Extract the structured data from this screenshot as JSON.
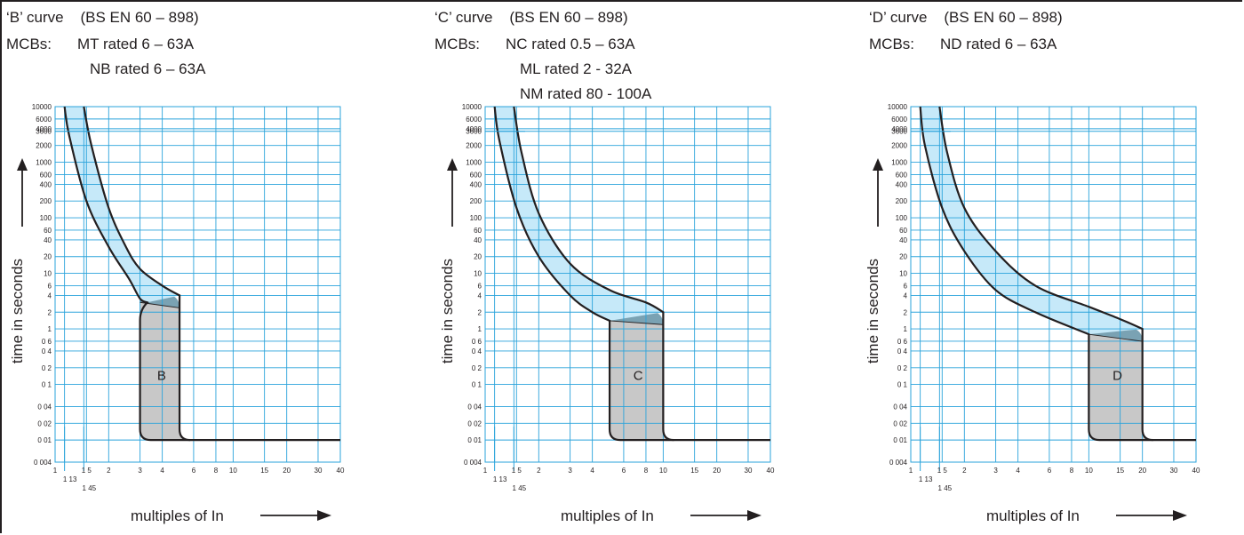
{
  "panels": [
    {
      "title": "‘B’ curve    (BS EN 60 – 898)",
      "mcbs_label": "MCBs:",
      "mcb_lines": [
        "MT rated 6 – 63A",
        "NB rated 6 – 63A"
      ],
      "region_label": "B"
    },
    {
      "title": "‘C’ curve    (BS EN 60 – 898)",
      "mcbs_label": "MCBs:",
      "mcb_lines": [
        "NC rated 0.5 – 63A",
        "ML rated 2 - 32A",
        "NM rated 80 - 100A"
      ],
      "region_label": "C"
    },
    {
      "title": "‘D’ curve    (BS EN 60 – 898)",
      "mcbs_label": "MCBs:",
      "mcb_lines": [
        "ND rated 6 – 63A"
      ],
      "region_label": "D"
    }
  ],
  "colors": {
    "band": "#c6e9f9",
    "overlap": "#7aa2b3",
    "shaded": "#c8c8c8",
    "grid": "#2aa3db",
    "line": "#231f20"
  },
  "chart_data": [
    {
      "type": "line",
      "title": "‘B’ curve    (BS EN 60 – 898)",
      "xlabel": "multiples of  In",
      "ylabel": "time in seconds",
      "x_scale": "log",
      "y_scale": "log",
      "xlim": [
        1,
        40
      ],
      "ylim": [
        0.004,
        10000
      ],
      "x_ticks": [
        "1",
        "1 13",
        "1 45",
        "1 5",
        "2",
        "3",
        "4",
        "6",
        "8",
        "10",
        "15",
        "20",
        "30",
        "40"
      ],
      "y_ticks": [
        "10000",
        "6000",
        "4000",
        "3600",
        "2000",
        "1000",
        "600",
        "400",
        "200",
        "100",
        "60",
        "40",
        "20",
        "10",
        "6",
        "4",
        "2",
        "1",
        "0 6",
        "0 4",
        "0 2",
        "0 1",
        "0 04",
        "0 02",
        "0 01",
        "0 004"
      ],
      "magnetic_region": {
        "label": "B",
        "x_min": 3,
        "x_max": 5
      },
      "series": [
        {
          "x": [
            1.13,
            1.2,
            1.5,
            2,
            2.6,
            3,
            3.3
          ],
          "y": [
            10000,
            3000,
            200,
            30,
            8,
            3.5,
            3
          ]
        },
        {
          "x": [
            1.45,
            1.6,
            2,
            2.5,
            3,
            4,
            5
          ],
          "y": [
            10000,
            2000,
            150,
            30,
            12,
            6,
            4
          ]
        }
      ]
    },
    {
      "type": "line",
      "title": "‘C’ curve    (BS EN 60 – 898)",
      "xlabel": "multiples of  In",
      "ylabel": "time in seconds",
      "x_scale": "log",
      "y_scale": "log",
      "xlim": [
        1,
        40
      ],
      "ylim": [
        0.004,
        10000
      ],
      "x_ticks": [
        "1",
        "1 13",
        "1 45",
        "1 5",
        "2",
        "3",
        "4",
        "6",
        "8",
        "10",
        "15",
        "20",
        "30",
        "40"
      ],
      "y_ticks": [
        "10000",
        "6000",
        "4000",
        "3600",
        "2000",
        "1000",
        "600",
        "400",
        "200",
        "100",
        "60",
        "40",
        "20",
        "10",
        "6",
        "4",
        "2",
        "1",
        "0 6",
        "0 4",
        "0 2",
        "0 1",
        "0 04",
        "0 02",
        "0 01",
        "0 004"
      ],
      "magnetic_region": {
        "label": "C",
        "x_min": 5,
        "x_max": 10
      },
      "series": [
        {
          "x": [
            1.13,
            1.2,
            1.5,
            2,
            3,
            4,
            5
          ],
          "y": [
            10000,
            2500,
            150,
            20,
            4,
            2,
            1.4
          ]
        },
        {
          "x": [
            1.45,
            1.6,
            2,
            3,
            5,
            8,
            10
          ],
          "y": [
            10000,
            1500,
            120,
            15,
            5,
            3,
            2
          ]
        }
      ]
    },
    {
      "type": "line",
      "title": "‘D’ curve    (BS EN 60 – 898)",
      "xlabel": "multiples of  In",
      "ylabel": "time in seconds",
      "x_scale": "log",
      "y_scale": "log",
      "xlim": [
        1,
        40
      ],
      "ylim": [
        0.004,
        10000
      ],
      "x_ticks": [
        "1",
        "1 13",
        "1 45",
        "1 5",
        "2",
        "3",
        "4",
        "6",
        "8",
        "10",
        "15",
        "20",
        "30",
        "40"
      ],
      "y_ticks": [
        "10000",
        "6000",
        "4000",
        "3600",
        "2000",
        "1000",
        "600",
        "400",
        "200",
        "100",
        "60",
        "40",
        "20",
        "10",
        "6",
        "4",
        "2",
        "1",
        "0 6",
        "0 4",
        "0 2",
        "0 1",
        "0 04",
        "0 02",
        "0 01",
        "0 004"
      ],
      "magnetic_region": {
        "label": "D",
        "x_min": 10,
        "x_max": 20
      },
      "series": [
        {
          "x": [
            1.13,
            1.2,
            1.5,
            2,
            3,
            5,
            10
          ],
          "y": [
            10000,
            2000,
            150,
            25,
            5,
            2,
            0.8
          ]
        },
        {
          "x": [
            1.45,
            1.6,
            2,
            3,
            5,
            10,
            15,
            20
          ],
          "y": [
            10000,
            1500,
            150,
            25,
            6,
            2.5,
            1.5,
            1
          ]
        }
      ]
    }
  ]
}
